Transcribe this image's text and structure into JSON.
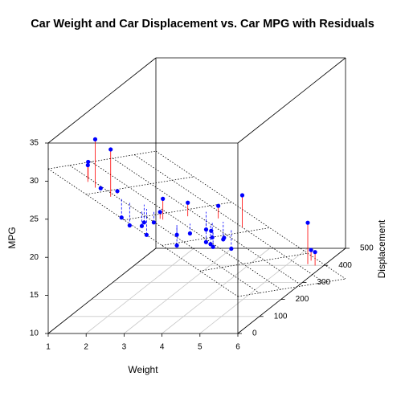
{
  "chart_data": {
    "type": "scatter3d",
    "title": "Car Weight and Car Displacement vs. Car MPG with Residuals",
    "xlabel": "Weight",
    "ylabel": "Displacement",
    "zlabel": "MPG",
    "x": [
      2.62,
      2.875,
      2.32,
      3.215,
      3.44,
      3.46,
      3.57,
      3.19,
      3.15,
      3.44,
      3.44,
      4.07,
      3.73,
      3.78,
      5.25,
      5.424,
      5.345,
      2.2,
      1.615,
      1.835,
      2.465,
      3.52,
      3.435,
      3.84,
      3.845,
      1.935,
      2.14,
      1.513,
      3.17,
      2.77,
      3.57,
      2.78
    ],
    "y": [
      160,
      160,
      108,
      258,
      360,
      225,
      360,
      146.7,
      140.8,
      167.6,
      167.6,
      275.8,
      275.8,
      275.8,
      472,
      460,
      440,
      78.7,
      75.7,
      71.1,
      120.1,
      318,
      304,
      350,
      400,
      79,
      120.3,
      95.1,
      351,
      145,
      301,
      121
    ],
    "z": [
      21,
      21,
      22.8,
      21.4,
      18.7,
      18.1,
      14.3,
      24.4,
      22.8,
      19.2,
      17.8,
      16.4,
      17.3,
      15.2,
      10.4,
      10.4,
      14.7,
      32.4,
      30.4,
      33.9,
      21.5,
      15.5,
      15.2,
      13.3,
      19.2,
      27.3,
      26,
      30.4,
      15.8,
      19.7,
      15,
      21.4
    ],
    "xlim": [
      1,
      6
    ],
    "ylim": [
      0,
      500
    ],
    "zlim": [
      10,
      35
    ],
    "xticks": [
      1,
      2,
      3,
      4,
      5,
      6
    ],
    "yticks": [
      0,
      100,
      200,
      300,
      400,
      500
    ],
    "zticks": [
      10,
      15,
      20,
      25,
      30,
      35
    ],
    "plane": {
      "intercept": 34.96,
      "x": -3.351,
      "y": -0.01772
    },
    "point_color": "#0000ff",
    "positive_residual_color": "#ff0000",
    "negative_residual_color": "#0000ff",
    "grid": true
  }
}
